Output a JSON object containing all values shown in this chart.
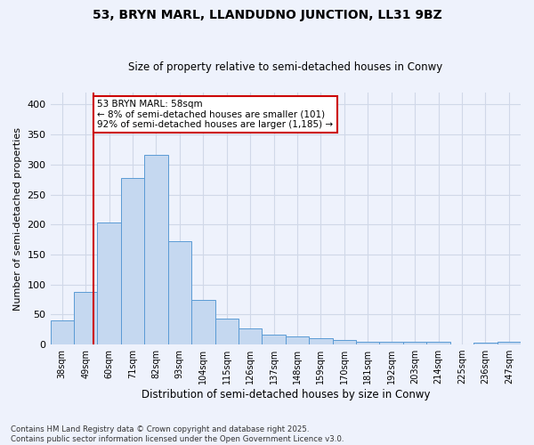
{
  "title": "53, BRYN MARL, LLANDUDNO JUNCTION, LL31 9BZ",
  "subtitle": "Size of property relative to semi-detached houses in Conwy",
  "xlabel": "Distribution of semi-detached houses by size in Conwy",
  "ylabel": "Number of semi-detached properties",
  "footer_line1": "Contains HM Land Registry data © Crown copyright and database right 2025.",
  "footer_line2": "Contains public sector information licensed under the Open Government Licence v3.0.",
  "annotation_title": "53 BRYN MARL: 58sqm",
  "annotation_line1": "← 8% of semi-detached houses are smaller (101)",
  "annotation_line2": "92% of semi-detached houses are larger (1,185) →",
  "bar_edges": [
    38,
    49,
    60,
    71,
    82,
    93,
    104,
    115,
    126,
    137,
    148,
    159,
    170,
    181,
    192,
    203,
    214,
    225,
    236,
    247,
    258
  ],
  "bar_heights": [
    40,
    87,
    204,
    278,
    316,
    172,
    75,
    43,
    27,
    16,
    13,
    10,
    8,
    5,
    5,
    5,
    4,
    0,
    3,
    5
  ],
  "property_value": 58,
  "bar_color": "#c5d8f0",
  "bar_edge_color": "#5b9bd5",
  "line_color": "#cc0000",
  "annotation_box_color": "#cc0000",
  "background_color": "#eef2fc",
  "grid_color": "#d0d8e8",
  "ylim": [
    0,
    420
  ],
  "yticks": [
    0,
    50,
    100,
    150,
    200,
    250,
    300,
    350,
    400
  ]
}
